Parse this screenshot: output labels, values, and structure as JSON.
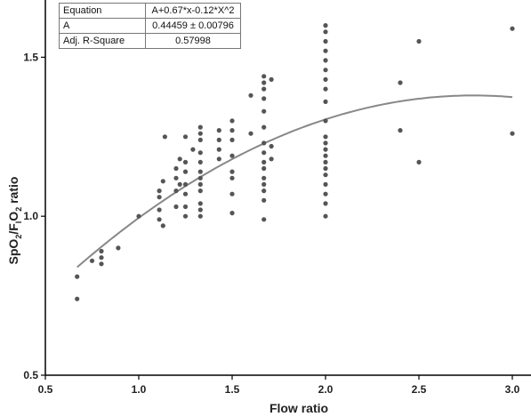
{
  "chart_data": {
    "type": "scatter",
    "title": "",
    "xlabel": "Flow ratio",
    "ylabel": {
      "a": "SpO",
      "a_sub": "2",
      "b": "/F",
      "b_sub": "I",
      "c": "O",
      "c_sub": "2",
      "d": " ratio"
    },
    "xlim": [
      0.5,
      3.1
    ],
    "ylim": [
      0.5,
      1.68
    ],
    "x_ticks": [
      "0.5",
      "1.0",
      "1.5",
      "2.0",
      "2.5",
      "3.0"
    ],
    "y_ticks": [
      "0.5",
      "1.0",
      "1.5"
    ],
    "grid": false,
    "point_color": "#555555",
    "curve_color": "#888888",
    "fit": {
      "coeffs": {
        "A": 0.44459,
        "b1": 0.67,
        "b2": -0.12
      },
      "x_range": [
        0.67,
        3.0
      ],
      "table": [
        {
          "label": "Equation",
          "value": "A+0.67*x-0.12*X^2"
        },
        {
          "label": "A",
          "value": "0.44459 ± 0.00796"
        },
        {
          "label": "Adj. R-Square",
          "value": "0.57998"
        }
      ]
    },
    "points": [
      [
        0.67,
        0.81
      ],
      [
        0.67,
        0.74
      ],
      [
        0.75,
        0.86
      ],
      [
        0.8,
        0.89
      ],
      [
        0.8,
        0.87
      ],
      [
        0.8,
        0.85
      ],
      [
        0.89,
        0.9
      ],
      [
        1.0,
        1.0
      ],
      [
        1.11,
        1.08
      ],
      [
        1.11,
        1.06
      ],
      [
        1.11,
        1.02
      ],
      [
        1.11,
        0.99
      ],
      [
        1.13,
        1.11
      ],
      [
        1.13,
        0.97
      ],
      [
        1.14,
        1.25
      ],
      [
        1.2,
        1.15
      ],
      [
        1.2,
        1.12
      ],
      [
        1.2,
        1.08
      ],
      [
        1.2,
        1.03
      ],
      [
        1.22,
        1.18
      ],
      [
        1.22,
        1.1
      ],
      [
        1.25,
        1.25
      ],
      [
        1.25,
        1.17
      ],
      [
        1.25,
        1.14
      ],
      [
        1.25,
        1.1
      ],
      [
        1.25,
        1.07
      ],
      [
        1.25,
        1.03
      ],
      [
        1.25,
        1.0
      ],
      [
        1.29,
        1.21
      ],
      [
        1.33,
        1.28
      ],
      [
        1.33,
        1.26
      ],
      [
        1.33,
        1.24
      ],
      [
        1.33,
        1.2
      ],
      [
        1.33,
        1.17
      ],
      [
        1.33,
        1.14
      ],
      [
        1.33,
        1.12
      ],
      [
        1.33,
        1.1
      ],
      [
        1.33,
        1.08
      ],
      [
        1.33,
        1.04
      ],
      [
        1.33,
        1.02
      ],
      [
        1.33,
        1.0
      ],
      [
        1.43,
        1.27
      ],
      [
        1.43,
        1.24
      ],
      [
        1.43,
        1.21
      ],
      [
        1.43,
        1.18
      ],
      [
        1.5,
        1.3
      ],
      [
        1.5,
        1.27
      ],
      [
        1.5,
        1.24
      ],
      [
        1.5,
        1.19
      ],
      [
        1.5,
        1.14
      ],
      [
        1.5,
        1.12
      ],
      [
        1.5,
        1.07
      ],
      [
        1.5,
        1.01
      ],
      [
        1.6,
        1.38
      ],
      [
        1.6,
        1.26
      ],
      [
        1.67,
        1.44
      ],
      [
        1.67,
        1.42
      ],
      [
        1.67,
        1.4
      ],
      [
        1.67,
        1.37
      ],
      [
        1.67,
        1.33
      ],
      [
        1.67,
        1.28
      ],
      [
        1.67,
        1.23
      ],
      [
        1.67,
        1.2
      ],
      [
        1.67,
        1.17
      ],
      [
        1.67,
        1.15
      ],
      [
        1.67,
        1.12
      ],
      [
        1.67,
        1.1
      ],
      [
        1.67,
        1.08
      ],
      [
        1.67,
        1.05
      ],
      [
        1.67,
        0.99
      ],
      [
        1.71,
        1.43
      ],
      [
        1.71,
        1.22
      ],
      [
        1.71,
        1.18
      ],
      [
        2.0,
        1.6
      ],
      [
        2.0,
        1.58
      ],
      [
        2.0,
        1.55
      ],
      [
        2.0,
        1.52
      ],
      [
        2.0,
        1.49
      ],
      [
        2.0,
        1.46
      ],
      [
        2.0,
        1.43
      ],
      [
        2.0,
        1.4
      ],
      [
        2.0,
        1.36
      ],
      [
        2.0,
        1.3
      ],
      [
        2.0,
        1.25
      ],
      [
        2.0,
        1.23
      ],
      [
        2.0,
        1.21
      ],
      [
        2.0,
        1.19
      ],
      [
        2.0,
        1.17
      ],
      [
        2.0,
        1.15
      ],
      [
        2.0,
        1.13
      ],
      [
        2.0,
        1.1
      ],
      [
        2.0,
        1.07
      ],
      [
        2.0,
        1.04
      ],
      [
        2.0,
        1.0
      ],
      [
        2.4,
        1.42
      ],
      [
        2.4,
        1.27
      ],
      [
        2.5,
        1.55
      ],
      [
        2.5,
        1.17
      ],
      [
        3.0,
        1.59
      ],
      [
        3.0,
        1.26
      ]
    ]
  }
}
